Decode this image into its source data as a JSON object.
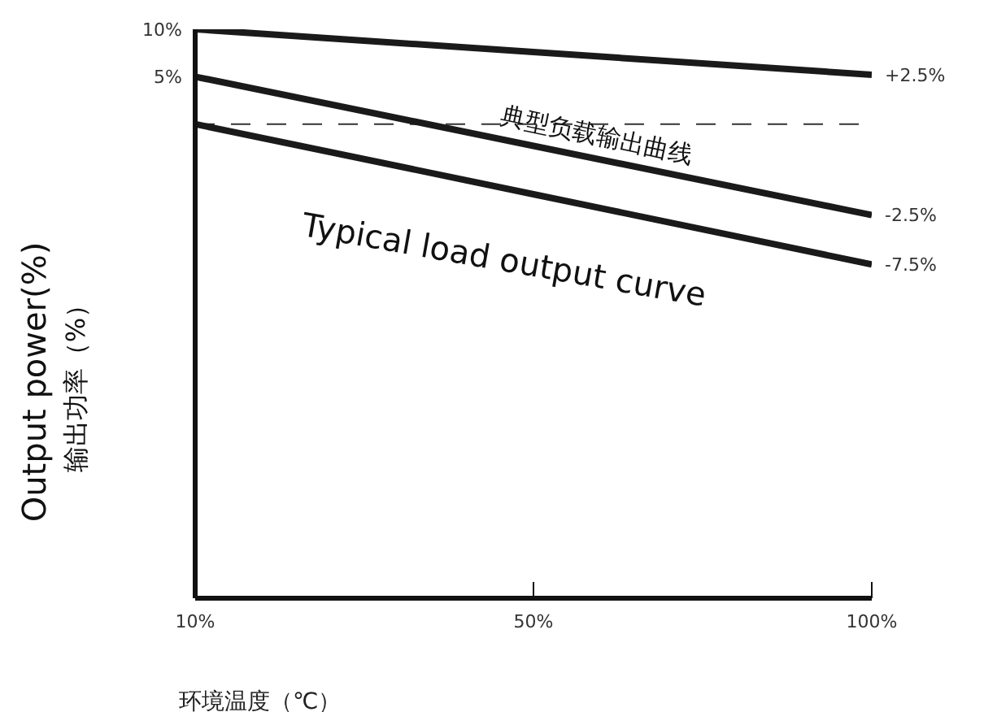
{
  "chart_data": {
    "type": "line",
    "xlabel": "环境温度（℃）",
    "ylabel": "Output power(%)\n输出功率（%）",
    "categories": [
      "10%",
      "50%",
      "100%"
    ],
    "series": [
      {
        "color": "#1a1a1a",
        "values": [
          10,
          7.6,
          5.2
        ]
      },
      {
        "color": "#1a1a1a",
        "values": [
          5,
          -2.3,
          -9.6
        ]
      },
      {
        "color": "#1a1a1a",
        "values": [
          0,
          -7.4,
          -14.8
        ]
      }
    ],
    "ylim": [
      -50,
      10
    ],
    "yticks": [
      {
        "value": 10,
        "label": "10%"
      },
      {
        "value": 5,
        "label": "5%"
      }
    ],
    "marker": "none",
    "line_style": "solid",
    "ref_lines": [
      {
        "axis": "y",
        "value": 0,
        "color": "#333333",
        "line_style": "dashed"
      }
    ],
    "annotations": [
      {
        "text": "+2.5%",
        "x": "100%",
        "y": 5.2
      },
      {
        "text": "-2.5%",
        "x": "100%",
        "y": -9.6
      },
      {
        "text": "-7.5%",
        "x": "100%",
        "y": -14.8
      },
      "典型负载输出曲线",
      "Typical load output curve"
    ]
  }
}
